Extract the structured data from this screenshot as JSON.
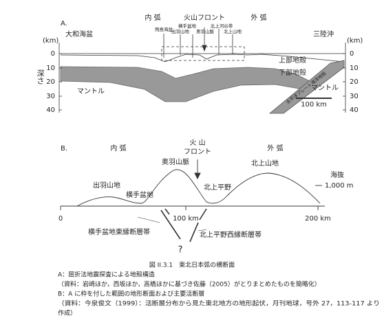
{
  "panel_a": {
    "label": "A.",
    "inner_arc": "内 弧",
    "volcanic_front": "火山フロント",
    "outer_arc": "外 弧",
    "left_region": "大和海盆",
    "right_region": "三陸沖",
    "features": [
      "飛島海盆",
      "出羽山地",
      "横手盆地",
      "奥羽山脈",
      "北上河谷帯",
      "北上山地"
    ],
    "axis_unit_left": "(km)",
    "axis_unit_right": "(km)",
    "left_ticks": [
      "0",
      "10",
      "20",
      "30",
      "40"
    ],
    "right_ticks": [
      "0",
      "10",
      "20",
      "30",
      "40"
    ],
    "axis_title": "深さ",
    "upper_crust": "上部地殻",
    "lower_crust": "下部地殻",
    "mantle_left": "マントル",
    "mantle_right": "マントル",
    "slab": "太平洋プレート海洋地殻",
    "scale": "100 km"
  },
  "panel_b": {
    "label": "B.",
    "inner_arc": "内 弧",
    "volcanic_front_1": "火 山",
    "volcanic_front_2": "フロント",
    "outer_arc": "外 弧",
    "ou_mountains": "奥羽山脈",
    "dewa_mountains": "出羽山地",
    "yokote_basin": "横手盆地",
    "kitakami_plain": "北上平野",
    "kitakami_mountains": "北上山地",
    "elevation_title": "海抜",
    "elevation_scale": "1,000 m",
    "x_ticks": [
      "0",
      "100 km",
      "200 km"
    ],
    "fault_left": "横手盆地東縁断層帯",
    "fault_right": "北上平野西縁断層帯",
    "unknown": "?"
  },
  "caption": {
    "title": "図 II.3.1　東北日本弧の横断面",
    "lines": [
      "A：屈折法地震探査による地殻構造",
      "（資料：岩崎ほか，西坂ほか，高橋ほかに基づき佐藤（2005）がとりまとめたものを簡略化）",
      "B：A に枠を付した範囲の地形断面および主要活断層",
      "（資料：今泉俊文（1999）：活断層分布から見た東北地方の地形起伏，月刊地球，号外 27，113-117 より",
      "作成）"
    ]
  }
}
